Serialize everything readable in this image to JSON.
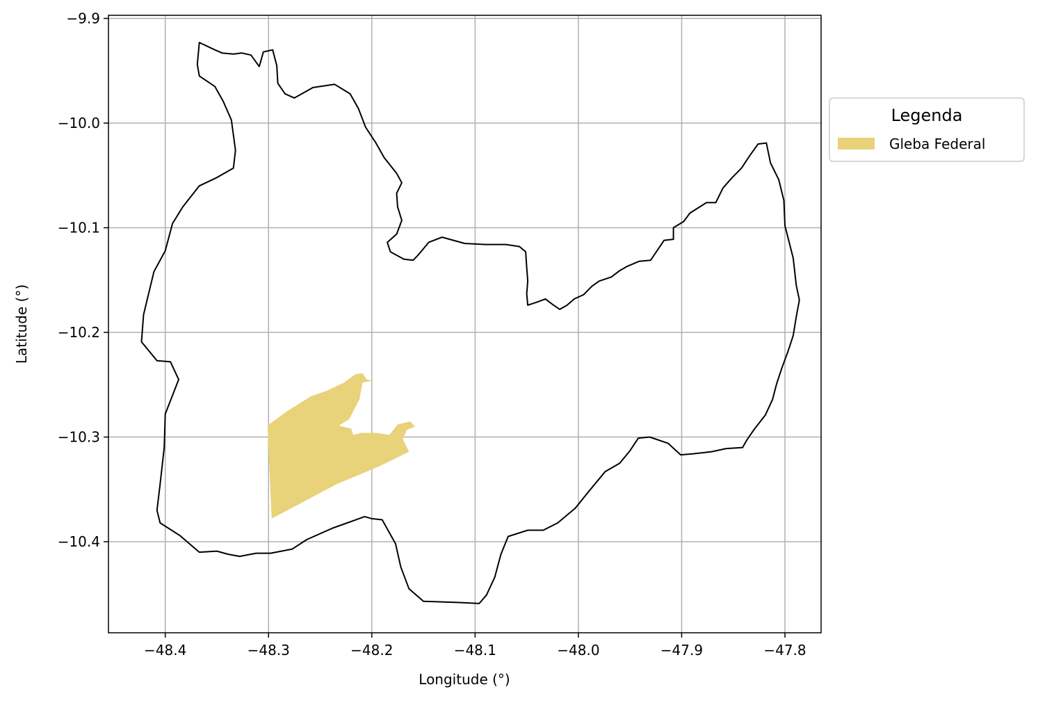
{
  "map": {
    "xlabel": "Longitude (°)",
    "ylabel": "Latitude (°)",
    "xlim": [
      -48.455,
      -47.765
    ],
    "ylim": [
      -10.487,
      -9.897
    ],
    "x_ticks": [
      -48.4,
      -48.3,
      -48.2,
      -48.1,
      -48.0,
      -47.9,
      -47.8
    ],
    "x_tick_labels": [
      "−48.4",
      "−48.3",
      "−48.2",
      "−48.1",
      "−48.0",
      "−47.9",
      "−47.8"
    ],
    "y_ticks": [
      -9.9,
      -10.0,
      -10.1,
      -10.2,
      -10.3,
      -10.4
    ],
    "y_tick_labels": [
      "−9.9",
      "−10.0",
      "−10.1",
      "−10.2",
      "−10.3",
      "−10.4"
    ],
    "grid": true,
    "legend": {
      "title": "Legenda",
      "placement": "outside-right-top",
      "items": [
        {
          "label": "Gleba Federal",
          "color": "#e8d27a"
        }
      ]
    },
    "colors": {
      "boundary": "#000000",
      "gleba": "#e8d27a",
      "grid": "#b0b0b0"
    },
    "municipal_boundary": [
      [
        -48.367,
        -9.923
      ],
      [
        -48.352,
        -9.93
      ],
      [
        -48.345,
        -9.933
      ],
      [
        -48.334,
        -9.934
      ],
      [
        -48.326,
        -9.933
      ],
      [
        -48.317,
        -9.935
      ],
      [
        -48.309,
        -9.946
      ],
      [
        -48.305,
        -9.932
      ],
      [
        -48.296,
        -9.93
      ],
      [
        -48.292,
        -9.945
      ],
      [
        -48.291,
        -9.962
      ],
      [
        -48.284,
        -9.972
      ],
      [
        -48.275,
        -9.976
      ],
      [
        -48.257,
        -9.966
      ],
      [
        -48.236,
        -9.963
      ],
      [
        -48.221,
        -9.972
      ],
      [
        -48.213,
        -9.986
      ],
      [
        -48.206,
        -10.004
      ],
      [
        -48.196,
        -10.019
      ],
      [
        -48.188,
        -10.033
      ],
      [
        -48.176,
        -10.048
      ],
      [
        -48.171,
        -10.057
      ],
      [
        -48.176,
        -10.067
      ],
      [
        -48.175,
        -10.08
      ],
      [
        -48.171,
        -10.093
      ],
      [
        -48.176,
        -10.106
      ],
      [
        -48.185,
        -10.114
      ],
      [
        -48.182,
        -10.123
      ],
      [
        -48.169,
        -10.13
      ],
      [
        -48.16,
        -10.131
      ],
      [
        -48.156,
        -10.127
      ],
      [
        -48.15,
        -10.12
      ],
      [
        -48.145,
        -10.114
      ],
      [
        -48.132,
        -10.109
      ],
      [
        -48.11,
        -10.115
      ],
      [
        -48.09,
        -10.116
      ],
      [
        -48.07,
        -10.116
      ],
      [
        -48.057,
        -10.118
      ],
      [
        -48.051,
        -10.123
      ],
      [
        -48.05,
        -10.138
      ],
      [
        -48.049,
        -10.151
      ],
      [
        -48.05,
        -10.163
      ],
      [
        -48.049,
        -10.174
      ],
      [
        -48.04,
        -10.171
      ],
      [
        -48.032,
        -10.168
      ],
      [
        -48.024,
        -10.174
      ],
      [
        -48.018,
        -10.178
      ],
      [
        -48.011,
        -10.174
      ],
      [
        -48.004,
        -10.168
      ],
      [
        -47.995,
        -10.164
      ],
      [
        -47.987,
        -10.156
      ],
      [
        -47.98,
        -10.151
      ],
      [
        -47.968,
        -10.147
      ],
      [
        -47.96,
        -10.141
      ],
      [
        -47.953,
        -10.137
      ],
      [
        -47.941,
        -10.132
      ],
      [
        -47.93,
        -10.131
      ],
      [
        -47.917,
        -10.112
      ],
      [
        -47.908,
        -10.111
      ],
      [
        -47.908,
        -10.1
      ],
      [
        -47.898,
        -10.094
      ],
      [
        -47.892,
        -10.086
      ],
      [
        -47.876,
        -10.076
      ],
      [
        -47.867,
        -10.076
      ],
      [
        -47.86,
        -10.062
      ],
      [
        -47.851,
        -10.052
      ],
      [
        -47.842,
        -10.043
      ],
      [
        -47.834,
        -10.031
      ],
      [
        -47.826,
        -10.02
      ],
      [
        -47.818,
        -10.019
      ],
      [
        -47.814,
        -10.038
      ],
      [
        -47.806,
        -10.054
      ],
      [
        -47.801,
        -10.074
      ],
      [
        -47.8,
        -10.098
      ],
      [
        -47.792,
        -10.129
      ],
      [
        -47.789,
        -10.155
      ],
      [
        -47.786,
        -10.169
      ],
      [
        -47.789,
        -10.185
      ],
      [
        -47.792,
        -10.203
      ],
      [
        -47.797,
        -10.218
      ],
      [
        -47.803,
        -10.234
      ],
      [
        -47.808,
        -10.249
      ],
      [
        -47.812,
        -10.264
      ],
      [
        -47.819,
        -10.279
      ],
      [
        -47.83,
        -10.293
      ],
      [
        -47.837,
        -10.303
      ],
      [
        -47.841,
        -10.31
      ],
      [
        -47.857,
        -10.311
      ],
      [
        -47.871,
        -10.314
      ],
      [
        -47.889,
        -10.316
      ],
      [
        -47.901,
        -10.317
      ],
      [
        -47.913,
        -10.306
      ],
      [
        -47.931,
        -10.3
      ],
      [
        -47.942,
        -10.301
      ],
      [
        -47.95,
        -10.313
      ],
      [
        -47.96,
        -10.325
      ],
      [
        -47.974,
        -10.333
      ],
      [
        -47.99,
        -10.352
      ],
      [
        -48.003,
        -10.368
      ],
      [
        -48.02,
        -10.382
      ],
      [
        -48.034,
        -10.389
      ],
      [
        -48.049,
        -10.389
      ],
      [
        -48.068,
        -10.395
      ],
      [
        -48.075,
        -10.412
      ],
      [
        -48.081,
        -10.434
      ],
      [
        -48.089,
        -10.451
      ],
      [
        -48.096,
        -10.459
      ],
      [
        -48.117,
        -10.458
      ],
      [
        -48.15,
        -10.457
      ],
      [
        -48.164,
        -10.445
      ],
      [
        -48.172,
        -10.424
      ],
      [
        -48.177,
        -10.402
      ],
      [
        -48.19,
        -10.379
      ],
      [
        -48.2,
        -10.378
      ],
      [
        -48.207,
        -10.376
      ],
      [
        -48.221,
        -10.381
      ],
      [
        -48.238,
        -10.387
      ],
      [
        -48.263,
        -10.398
      ],
      [
        -48.277,
        -10.407
      ],
      [
        -48.298,
        -10.411
      ],
      [
        -48.305,
        -10.411
      ],
      [
        -48.312,
        -10.411
      ],
      [
        -48.328,
        -10.414
      ],
      [
        -48.339,
        -10.412
      ],
      [
        -48.35,
        -10.409
      ],
      [
        -48.367,
        -10.41
      ],
      [
        -48.386,
        -10.394
      ],
      [
        -48.405,
        -10.382
      ],
      [
        -48.408,
        -10.37
      ],
      [
        -48.405,
        -10.345
      ],
      [
        -48.401,
        -10.31
      ],
      [
        -48.4,
        -10.278
      ],
      [
        -48.387,
        -10.245
      ],
      [
        -48.395,
        -10.228
      ],
      [
        -48.408,
        -10.227
      ],
      [
        -48.423,
        -10.209
      ],
      [
        -48.421,
        -10.183
      ],
      [
        -48.411,
        -10.142
      ],
      [
        -48.4,
        -10.122
      ],
      [
        -48.393,
        -10.096
      ],
      [
        -48.383,
        -10.08
      ],
      [
        -48.367,
        -10.06
      ],
      [
        -48.35,
        -10.052
      ],
      [
        -48.334,
        -10.043
      ],
      [
        -48.332,
        -10.026
      ],
      [
        -48.336,
        -9.997
      ],
      [
        -48.344,
        -9.979
      ],
      [
        -48.352,
        -9.965
      ],
      [
        -48.367,
        -9.955
      ],
      [
        -48.369,
        -9.944
      ],
      [
        -48.367,
        -9.923
      ]
    ],
    "gleba_federal": [
      [
        -48.301,
        -10.289
      ],
      [
        -48.283,
        -10.276
      ],
      [
        -48.259,
        -10.261
      ],
      [
        -48.244,
        -10.256
      ],
      [
        -48.227,
        -10.248
      ],
      [
        -48.216,
        -10.24
      ],
      [
        -48.209,
        -10.239
      ],
      [
        -48.205,
        -10.245
      ],
      [
        -48.199,
        -10.246
      ],
      [
        -48.209,
        -10.248
      ],
      [
        -48.212,
        -10.264
      ],
      [
        -48.222,
        -10.283
      ],
      [
        -48.232,
        -10.289
      ],
      [
        -48.22,
        -10.292
      ],
      [
        -48.218,
        -10.298
      ],
      [
        -48.21,
        -10.296
      ],
      [
        -48.195,
        -10.296
      ],
      [
        -48.183,
        -10.298
      ],
      [
        -48.175,
        -10.288
      ],
      [
        -48.163,
        -10.285
      ],
      [
        -48.158,
        -10.29
      ],
      [
        -48.166,
        -10.293
      ],
      [
        -48.17,
        -10.302
      ],
      [
        -48.164,
        -10.314
      ],
      [
        -48.193,
        -10.328
      ],
      [
        -48.234,
        -10.345
      ],
      [
        -48.297,
        -10.378
      ],
      [
        -48.301,
        -10.289
      ]
    ]
  }
}
